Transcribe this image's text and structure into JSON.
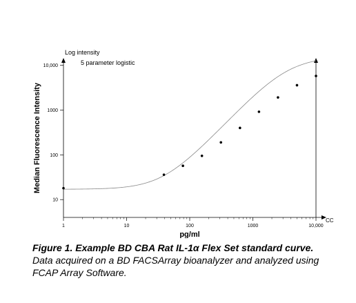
{
  "chart_data": {
    "type": "scatter",
    "log_intensity_label": "Log intensity",
    "annotation": "5 parameter logistic",
    "ylabel": "Median Fluorescence Intensity",
    "xlabel": "pg/ml",
    "x_axis_end_label": "CC",
    "x_scale": "log",
    "y_scale": "log",
    "xlim": [
      1,
      10000
    ],
    "ylim": [
      4,
      11000
    ],
    "x_ticks": [
      1,
      10,
      100,
      1000,
      10000
    ],
    "x_tick_labels": [
      "1",
      "10",
      "100",
      "1000",
      "10,000"
    ],
    "y_ticks": [
      10,
      100,
      1000,
      10000
    ],
    "y_tick_labels": [
      "10",
      "100",
      "1000",
      "10,000"
    ],
    "points": [
      {
        "x": 1,
        "y": 18
      },
      {
        "x": 39,
        "y": 36
      },
      {
        "x": 78,
        "y": 57
      },
      {
        "x": 156,
        "y": 95
      },
      {
        "x": 312,
        "y": 190
      },
      {
        "x": 625,
        "y": 400
      },
      {
        "x": 1250,
        "y": 920
      },
      {
        "x": 2500,
        "y": 1920
      },
      {
        "x": 5000,
        "y": 3600
      },
      {
        "x": 10000,
        "y": 5800
      }
    ],
    "curve": {
      "a": 17,
      "d": 16000,
      "c": 3300,
      "b": 1.5,
      "g": 0.85
    },
    "grid": false
  },
  "caption": {
    "bold": "Figure 1. Example BD CBA Rat IL-1α Flex Set standard curve.",
    "text": " Data acquired on a BD FACSArray bioanalyzer and analyzed using FCAP Array Software."
  }
}
